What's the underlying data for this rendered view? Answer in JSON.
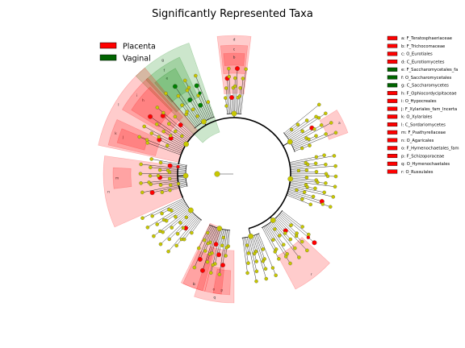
{
  "title": "Significantly Represented Taxa",
  "groups": [
    {
      "name": "Placenta",
      "color": "#ff0000"
    },
    {
      "name": "Vaginal",
      "color": "#006400"
    }
  ],
  "colors": {
    "placenta_shade": "#ff0000",
    "vaginal_shade": "#008000",
    "neutral_node": "#c8c800",
    "branch": "#000000"
  },
  "clades": [
    {
      "key": "a",
      "name": "F_Teratosphaeriaceae",
      "group": "Placenta"
    },
    {
      "key": "b",
      "name": "F_Trichocomaceae",
      "group": "Placenta"
    },
    {
      "key": "c",
      "name": "O_Eurotiales",
      "group": "Placenta"
    },
    {
      "key": "d",
      "name": "C_Eurotiomycetes",
      "group": "Placenta"
    },
    {
      "key": "e",
      "name": "F_Saccharomycetales_fa",
      "group": "Vaginal"
    },
    {
      "key": "f",
      "name": "O_Saccharomycetales",
      "group": "Vaginal"
    },
    {
      "key": "g",
      "name": "C_Saccharomycetes",
      "group": "Vaginal"
    },
    {
      "key": "h",
      "name": "F_Ophiocordycipitaceae",
      "group": "Placenta"
    },
    {
      "key": "i",
      "name": "O_Hypocreales",
      "group": "Placenta"
    },
    {
      "key": "j",
      "name": "F_Xylariales_fam_Incerta",
      "group": "Placenta"
    },
    {
      "key": "k",
      "name": "O_Xylariales",
      "group": "Placenta"
    },
    {
      "key": "l",
      "name": "C_Sordariomycetes",
      "group": "Placenta"
    },
    {
      "key": "m",
      "name": "F_Psathyrellaceae",
      "group": "Placenta"
    },
    {
      "key": "n",
      "name": "O_Agaricales",
      "group": "Placenta"
    },
    {
      "key": "o",
      "name": "F_Hymenochaetales_fam",
      "group": "Placenta"
    },
    {
      "key": "p",
      "name": "F_Schizoporaceae",
      "group": "Placenta"
    },
    {
      "key": "q",
      "name": "O_Hymenochaetales",
      "group": "Placenta"
    },
    {
      "key": "r",
      "name": "O_Russulales",
      "group": "Placenta"
    }
  ]
}
